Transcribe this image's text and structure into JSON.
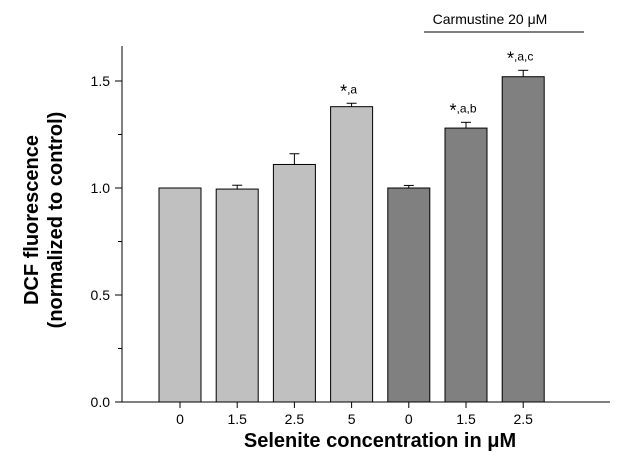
{
  "chart_data": {
    "type": "bar",
    "categories": [
      "0",
      "1.5",
      "2.5",
      "5",
      "0",
      "1.5",
      "2.5"
    ],
    "values": [
      1.0,
      0.995,
      1.11,
      1.38,
      1.0,
      1.28,
      1.52
    ],
    "errors": [
      0.0,
      0.018,
      0.05,
      0.016,
      0.012,
      0.027,
      0.03
    ],
    "bar_colors": [
      "#c0c0c0",
      "#c0c0c0",
      "#c0c0c0",
      "#c0c0c0",
      "#808080",
      "#808080",
      "#808080"
    ],
    "annotations": [
      {
        "bar": 3,
        "star": "*",
        "text": ",a"
      },
      {
        "bar": 5,
        "star": "*",
        "text": ",a,b"
      },
      {
        "bar": 6,
        "star": "*",
        "text": ",a,c"
      }
    ],
    "group_label": {
      "text": "Carmustine 20 μM",
      "from_bar": 4,
      "to_bar": 6
    },
    "xlabel": "Selenite concentration in μM",
    "ylabel_line1": "DCF fluorescence",
    "ylabel_line2": "(normalized to control)",
    "yticks": [
      "0.0",
      "0.5",
      "1.0",
      "1.5"
    ],
    "ylim": [
      0,
      1.7
    ],
    "grid": false
  }
}
